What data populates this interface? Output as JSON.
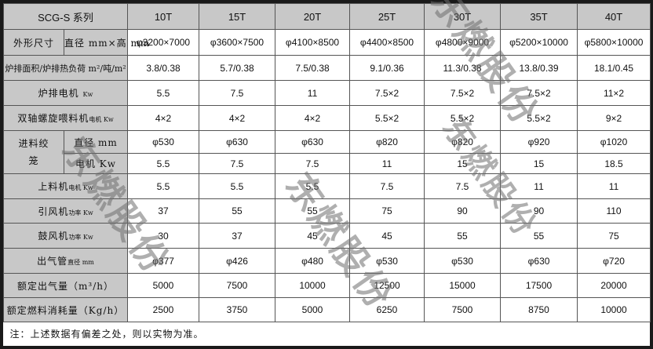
{
  "header": {
    "series": "SCG-S 系列",
    "models": [
      "10T",
      "15T",
      "20T",
      "25T",
      "30T",
      "35T",
      "40T"
    ]
  },
  "rows": [
    {
      "label": "外形尺寸",
      "sub": "直径 mm×高 mm",
      "values": [
        "φ3200×7000",
        "φ3600×7500",
        "φ4100×8500",
        "φ4400×8500",
        "φ4800×9000",
        "φ5200×10000",
        "φ5800×10000"
      ]
    },
    {
      "label": "炉排面积/炉排热负荷 m²/吨/m²",
      "values": [
        "3.8/0.38",
        "5.7/0.38",
        "7.5/0.38",
        "9.1/0.36",
        "11.3/0.38",
        "13.8/0.39",
        "18.1/0.45"
      ]
    },
    {
      "label": "炉排电机",
      "unit": "Kw",
      "values": [
        "5.5",
        "7.5",
        "11",
        "7.5×2",
        "7.5×2",
        "7.5×2",
        "11×2"
      ]
    },
    {
      "label": "双轴螺旋喂料机",
      "unit": "电机 Kw",
      "values": [
        "4×2",
        "4×2",
        "4×2",
        "5.5×2",
        "5.5×2",
        "5.5×2",
        "9×2"
      ]
    },
    {
      "label": "进料绞笼",
      "sub": "直径 mm",
      "values": [
        "φ530",
        "φ630",
        "φ630",
        "φ820",
        "φ820",
        "φ920",
        "φ1020"
      ]
    },
    {
      "sub": "电机 Kw",
      "values": [
        "5.5",
        "7.5",
        "7.5",
        "11",
        "15",
        "15",
        "18.5"
      ]
    },
    {
      "label": "上料机",
      "unit": "电机 Kw",
      "values": [
        "5.5",
        "5.5",
        "5.5",
        "7.5",
        "7.5",
        "11",
        "11"
      ]
    },
    {
      "label": "引风机",
      "unit": "功率 Kw",
      "values": [
        "37",
        "55",
        "55",
        "75",
        "90",
        "90",
        "110"
      ]
    },
    {
      "label": "鼓风机",
      "unit": "功率 Kw",
      "values": [
        "30",
        "37",
        "45",
        "45",
        "55",
        "55",
        "75"
      ]
    },
    {
      "label": "出气管",
      "unit": "直径 mm",
      "values": [
        "φ377",
        "φ426",
        "φ480",
        "φ530",
        "φ530",
        "φ630",
        "φ720"
      ]
    },
    {
      "label": "额定出气量（m³/h）",
      "values": [
        "5000",
        "7500",
        "10000",
        "12500",
        "15000",
        "17500",
        "20000"
      ]
    },
    {
      "label": "额定燃料消耗量（Kg/h）",
      "values": [
        "2500",
        "3750",
        "5000",
        "6250",
        "7500",
        "8750",
        "10000"
      ]
    }
  ],
  "note": "注：上述数据有偏差之处，则以实物为准。",
  "watermark": "东燃股份"
}
